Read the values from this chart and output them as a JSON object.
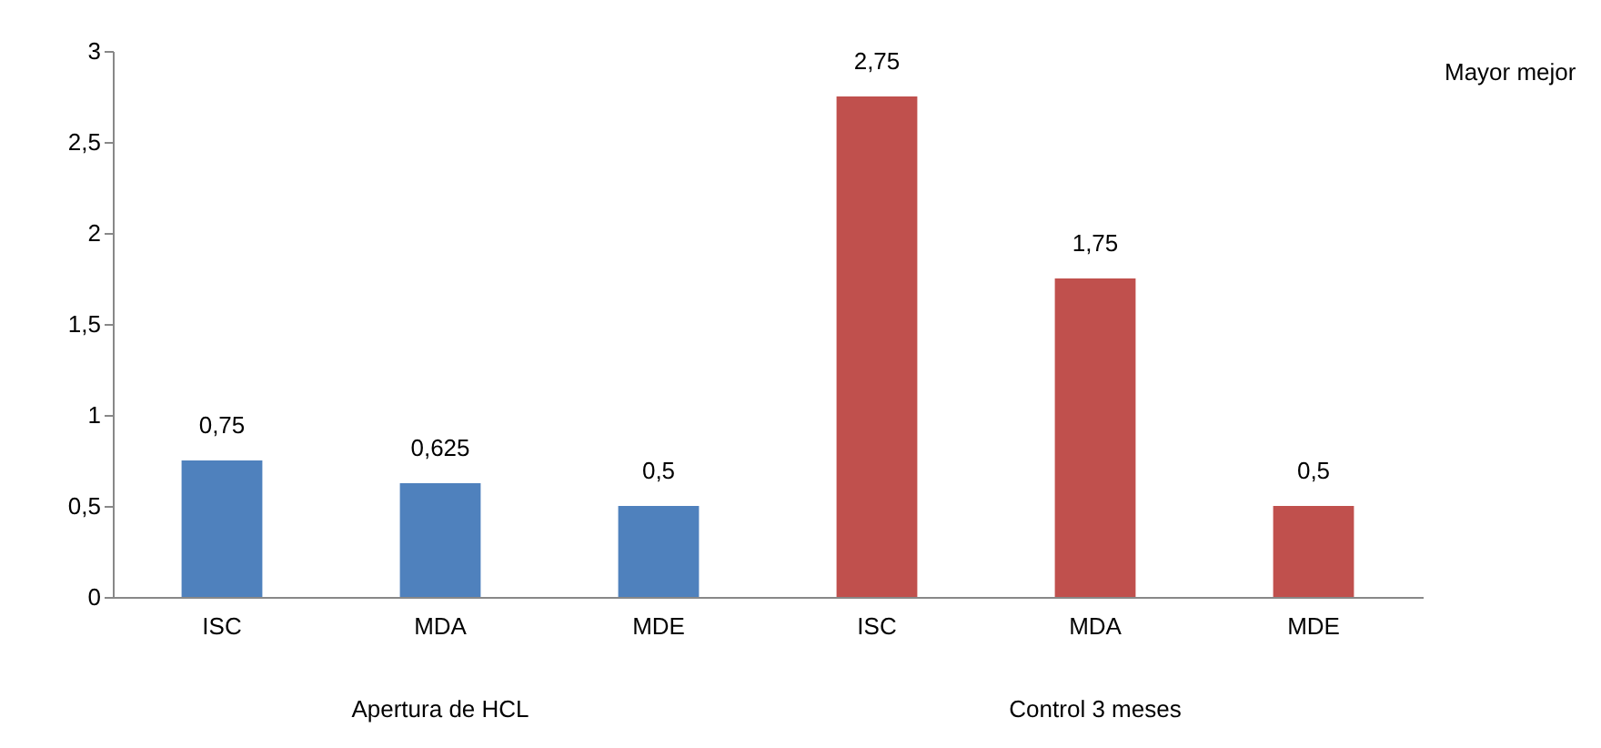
{
  "chart_data": {
    "type": "bar",
    "categories": [
      "ISC",
      "MDA",
      "MDE",
      "ISC",
      "MDA",
      "MDE"
    ],
    "values": [
      0.75,
      0.625,
      0.5,
      2.75,
      1.75,
      0.5
    ],
    "colors": [
      "#4f81bd",
      "#4f81bd",
      "#4f81bd",
      "#c0504d",
      "#c0504d",
      "#c0504d"
    ],
    "value_labels": [
      "0,75",
      "0,625",
      "0,5",
      "2,75",
      "1,75",
      "0,5"
    ],
    "ylim": [
      0,
      3
    ],
    "yticks": [
      0,
      {
        "value": 0.5,
        "label": "0,5"
      },
      1,
      {
        "value": 1.5,
        "label": "1,5"
      },
      2,
      {
        "value": 2.5,
        "label": "2,5"
      },
      3
    ],
    "annotations": [
      "Apertura de HCL",
      "Control 3 meses",
      "Mayor mejor"
    ],
    "grid": false
  }
}
